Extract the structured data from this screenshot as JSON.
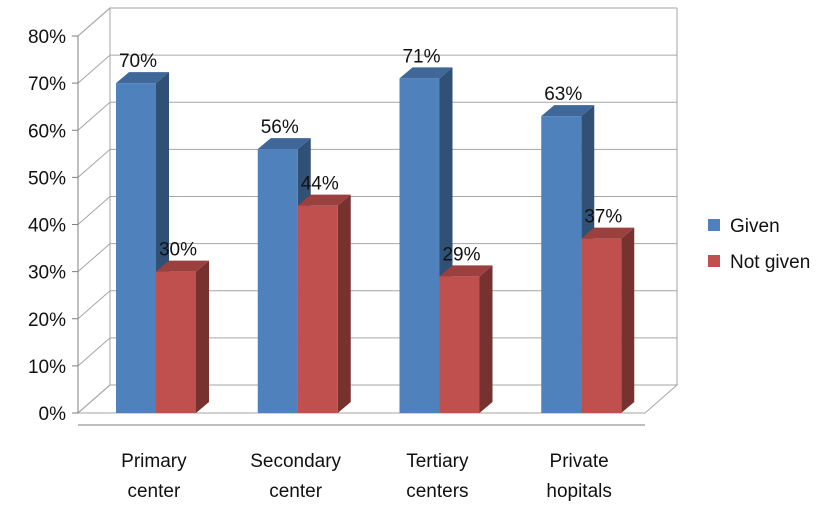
{
  "chart_data": {
    "type": "bar",
    "categories": [
      [
        "Primary",
        "center"
      ],
      [
        "Secondary",
        "center"
      ],
      [
        "Tertiary",
        "centers"
      ],
      [
        "Private",
        "hopitals"
      ]
    ],
    "series": [
      {
        "name": "Given",
        "values": [
          70,
          56,
          71,
          63
        ],
        "labels": [
          "70%",
          "56%",
          "71%",
          "63%"
        ],
        "color": "#4F81BD"
      },
      {
        "name": "Not given",
        "values": [
          30,
          44,
          29,
          37
        ],
        "labels": [
          "30%",
          "44%",
          "29%",
          "37%"
        ],
        "color": "#C0504D"
      }
    ],
    "ylim": [
      0,
      80
    ],
    "yticks": [
      "0%",
      "10%",
      "20%",
      "30%",
      "40%",
      "50%",
      "60%",
      "70%",
      "80%"
    ],
    "grid": true,
    "three_d": true,
    "legend_position": "right"
  }
}
